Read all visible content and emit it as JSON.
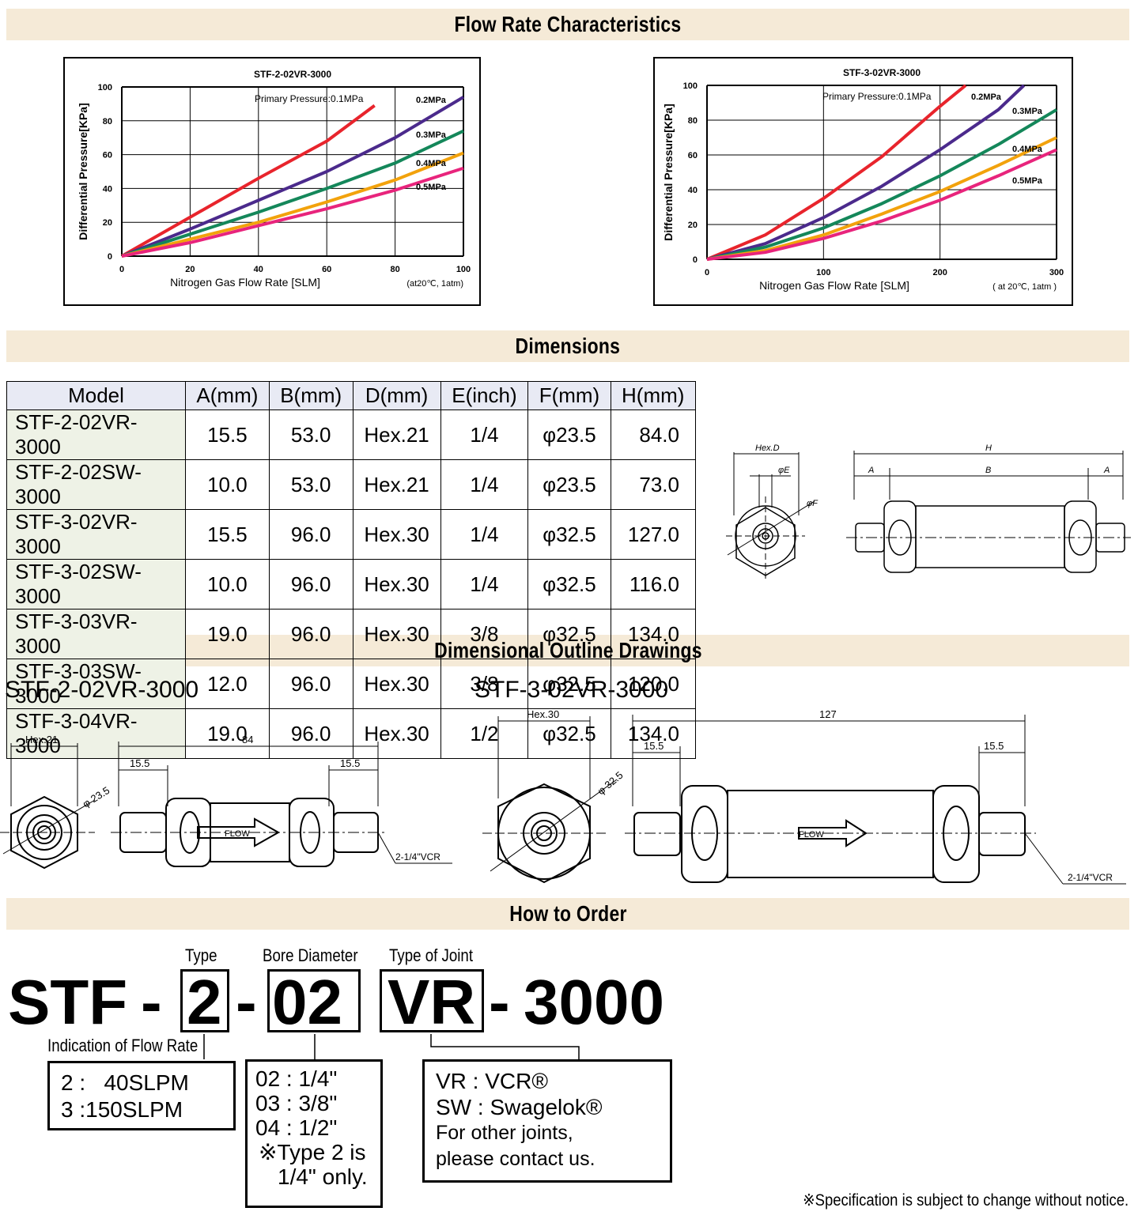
{
  "sections": {
    "flow": "Flow Rate Characteristics",
    "dimensions": "Dimensions",
    "outline": "Dimensional Outline Drawings",
    "order": "How to Order"
  },
  "chart_data": [
    {
      "type": "line",
      "title": "STF-2-02VR-3000",
      "xlabel": "Nitrogen Gas Flow Rate [SLM]",
      "ylabel": "Differential Pressure[KPa]",
      "note": "(at20℃, 1atm)",
      "xlim": [
        0,
        100
      ],
      "ylim": [
        0,
        100
      ],
      "xticks": [
        0,
        20,
        40,
        60,
        80,
        100
      ],
      "yticks": [
        0,
        20,
        40,
        60,
        80,
        100
      ],
      "grid": true,
      "series": [
        {
          "name": "Primary Pressure:0.1MPa",
          "color": "#e8242c",
          "x": [
            0,
            20,
            40,
            60,
            74
          ],
          "y": [
            0,
            23,
            46,
            68,
            89
          ]
        },
        {
          "name": "0.2MPa",
          "color": "#4b2a8c",
          "x": [
            0,
            20,
            40,
            60,
            80,
            100
          ],
          "y": [
            0,
            16,
            33,
            50,
            70,
            94
          ]
        },
        {
          "name": "0.3MPa",
          "color": "#14875a",
          "x": [
            0,
            20,
            40,
            60,
            80,
            100
          ],
          "y": [
            0,
            13,
            26,
            40,
            55,
            74
          ]
        },
        {
          "name": "0.4MPa",
          "color": "#f2a20c",
          "x": [
            0,
            20,
            40,
            60,
            80,
            100
          ],
          "y": [
            0,
            10,
            20,
            32,
            45,
            61
          ]
        },
        {
          "name": "0.5MPa",
          "color": "#e8247c",
          "x": [
            0,
            20,
            40,
            60,
            80,
            100
          ],
          "y": [
            0,
            8,
            18,
            28,
            39,
            52
          ]
        }
      ]
    },
    {
      "type": "line",
      "title": "STF-3-02VR-3000",
      "xlabel": "Nitrogen Gas Flow Rate [SLM]",
      "ylabel": "Differential Pressure[KPa]",
      "note": "( at 20℃, 1atm )",
      "xlim": [
        0,
        300
      ],
      "ylim": [
        0,
        100
      ],
      "xticks": [
        0,
        100,
        200,
        300
      ],
      "yticks": [
        0,
        20,
        40,
        60,
        80,
        100
      ],
      "grid": true,
      "series": [
        {
          "name": "Primary Pressure:0.1MPa",
          "color": "#e8242c",
          "x": [
            0,
            50,
            100,
            150,
            200,
            222
          ],
          "y": [
            0,
            14,
            35,
            59,
            88,
            100
          ]
        },
        {
          "name": "0.2MPa",
          "color": "#4b2a8c",
          "x": [
            0,
            50,
            100,
            150,
            200,
            250,
            272
          ],
          "y": [
            0,
            9,
            24,
            42,
            63,
            86,
            100
          ]
        },
        {
          "name": "0.3MPa",
          "color": "#14875a",
          "x": [
            0,
            50,
            100,
            150,
            200,
            250,
            300
          ],
          "y": [
            0,
            7,
            18,
            32,
            48,
            66,
            86
          ]
        },
        {
          "name": "0.4MPa",
          "color": "#f2a20c",
          "x": [
            0,
            50,
            100,
            150,
            200,
            250,
            300
          ],
          "y": [
            0,
            5,
            14,
            26,
            39,
            54,
            70
          ]
        },
        {
          "name": "0.5MPa",
          "color": "#e8247c",
          "x": [
            0,
            50,
            100,
            150,
            200,
            250,
            300
          ],
          "y": [
            0,
            4,
            12,
            22,
            34,
            48,
            63
          ]
        }
      ]
    }
  ],
  "dimensions_table": {
    "headers": [
      "Model",
      "A(mm)",
      "B(mm)",
      "D(mm)",
      "E(inch)",
      "F(mm)",
      "H(mm)"
    ],
    "rows": [
      [
        "STF-2-02VR-3000",
        "15.5",
        "53.0",
        "Hex.21",
        "1/4",
        "φ23.5",
        "84.0"
      ],
      [
        "STF-2-02SW-3000",
        "10.0",
        "53.0",
        "Hex.21",
        "1/4",
        "φ23.5",
        "73.0"
      ],
      [
        "STF-3-02VR-3000",
        "15.5",
        "96.0",
        "Hex.30",
        "1/4",
        "φ32.5",
        "127.0"
      ],
      [
        "STF-3-02SW-3000",
        "10.0",
        "96.0",
        "Hex.30",
        "1/4",
        "φ32.5",
        "116.0"
      ],
      [
        "STF-3-03VR-3000",
        "19.0",
        "96.0",
        "Hex.30",
        "3/8",
        "φ32.5",
        "134.0"
      ],
      [
        "STF-3-03SW-3000",
        "12.0",
        "96.0",
        "Hex.30",
        "3/8",
        "φ32.5",
        "120.0"
      ],
      [
        "STF-3-04VR-3000",
        "19.0",
        "96.0",
        "Hex.30",
        "1/2",
        "φ32.5",
        "134.0"
      ]
    ]
  },
  "dim_drawing_labels": {
    "hex": "Hex.D",
    "e": "φE",
    "f": "φF",
    "h": "H",
    "a": "A",
    "b": "B"
  },
  "outline": {
    "left": {
      "title": "STF-2-02VR-3000",
      "hex": "Hex.21",
      "dia": "φ 23.5",
      "length": "84",
      "a_left": "15.5",
      "a_right": "15.5",
      "flow": "FLOW",
      "joint": "2-1/4\"VCR"
    },
    "right": {
      "title": "STF-3-02VR-3000",
      "hex": "Hex.30",
      "dia": "φ 32.5",
      "length": "127",
      "a_left": "15.5",
      "a_right": "15.5",
      "flow": "FLOW",
      "joint": "2-1/4\"VCR"
    }
  },
  "order": {
    "prefix": "STF",
    "dash": "-",
    "type_value": "2",
    "bore_value": "02",
    "joint_value": "VR",
    "suffix": "3000",
    "type_label": "Type",
    "bore_label": "Bore Diameter",
    "joint_label": "Type of Joint",
    "flow_label": "Indication of Flow Rate",
    "flow_lines": [
      "2 :   40SLPM",
      "3 :150SLPM"
    ],
    "bore_lines": [
      "02 : 1/4\"",
      "03 : 3/8\"",
      "04 : 1/2\"",
      "※Type 2 is",
      "1/4\" only."
    ],
    "joint_lines": [
      "VR : VCR®",
      "SW : Swagelok®",
      "For other joints,",
      "please contact us."
    ],
    "notice": "※Specification is subject to change without notice."
  }
}
